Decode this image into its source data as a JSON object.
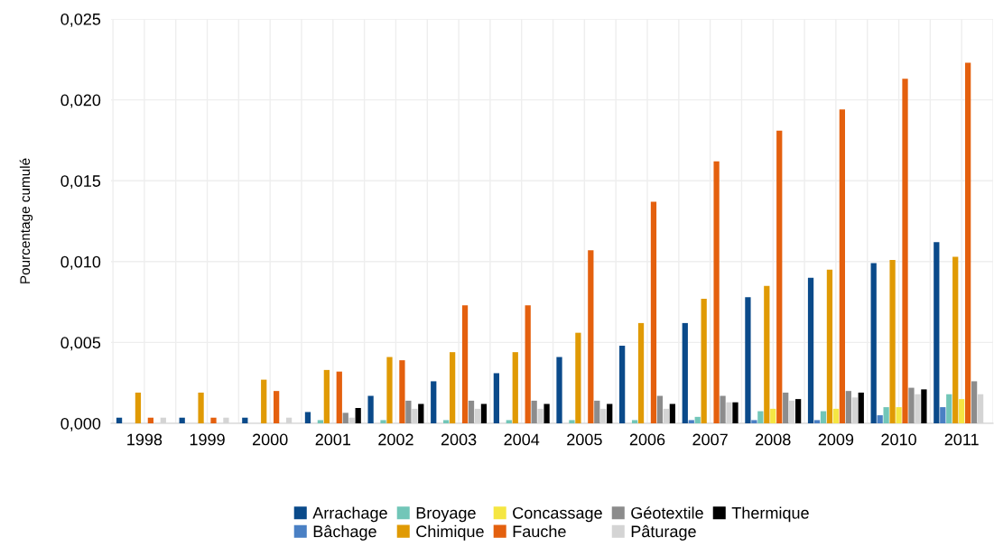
{
  "chart_data": {
    "type": "bar",
    "ylabel": "Pourcentage cumulé",
    "categories": [
      "1998",
      "1999",
      "2000",
      "2001",
      "2002",
      "2003",
      "2004",
      "2005",
      "2006",
      "2007",
      "2008",
      "2009",
      "2010",
      "2011"
    ],
    "series": [
      {
        "name": "Arrachage",
        "color": "#0a4a8a",
        "values": [
          0.00035,
          0.00035,
          0.00035,
          0.0007,
          0.0017,
          0.0026,
          0.0031,
          0.0041,
          0.0048,
          0.0062,
          0.0078,
          0.009,
          0.0099,
          0.0112
        ]
      },
      {
        "name": "Bâchage",
        "color": "#4a80c4",
        "values": [
          0,
          0,
          0,
          0,
          0,
          0,
          0,
          0,
          0,
          0.0002,
          0.0002,
          0.0002,
          0.0005,
          0.001
        ]
      },
      {
        "name": "Broyage",
        "color": "#72c6b8",
        "values": [
          0,
          0,
          0,
          0.0002,
          0.0002,
          0.0002,
          0.0002,
          0.0002,
          0.0002,
          0.0004,
          0.00075,
          0.00075,
          0.001,
          0.0018
        ]
      },
      {
        "name": "Chimique",
        "color": "#e09a04",
        "values": [
          0.0019,
          0.0019,
          0.0027,
          0.0033,
          0.0041,
          0.0044,
          0.0044,
          0.0056,
          0.0062,
          0.0077,
          0.0085,
          0.0095,
          0.0101,
          0.0103
        ]
      },
      {
        "name": "Concassage",
        "color": "#f5e642",
        "values": [
          0,
          0,
          0,
          0,
          0,
          0,
          0,
          0,
          0,
          0,
          0.0009,
          0.0009,
          0.001,
          0.0015
        ]
      },
      {
        "name": "Fauche",
        "color": "#e4600e",
        "values": [
          0.00035,
          0.00035,
          0.002,
          0.0032,
          0.0039,
          0.0073,
          0.0073,
          0.0107,
          0.0137,
          0.0162,
          0.0181,
          0.0194,
          0.0213,
          0.0223
        ]
      },
      {
        "name": "Géotextile",
        "color": "#8c8c8c",
        "values": [
          0,
          0,
          0,
          0.00065,
          0.0014,
          0.0014,
          0.0014,
          0.0014,
          0.0017,
          0.0017,
          0.0019,
          0.002,
          0.0022,
          0.0026
        ]
      },
      {
        "name": "Pâturage",
        "color": "#d4d4d4",
        "values": [
          0.00035,
          0.00035,
          0.00035,
          0.00035,
          0.0009,
          0.0009,
          0.0009,
          0.0009,
          0.0009,
          0.0013,
          0.0014,
          0.0016,
          0.0018,
          0.0018
        ]
      },
      {
        "name": "Thermique",
        "color": "#000000",
        "values": [
          0,
          0,
          0,
          0.00095,
          0.0012,
          0.0012,
          0.0012,
          0.0012,
          0.0012,
          0.0013,
          0.0015,
          0.0019,
          0.0021,
          null
        ]
      }
    ],
    "ylim": [
      0,
      0.025
    ],
    "yticks": [
      {
        "value": 0,
        "label": "0,000"
      },
      {
        "value": 0.005,
        "label": "0,005"
      },
      {
        "value": 0.01,
        "label": "0,010"
      },
      {
        "value": 0.015,
        "label": "0,015"
      },
      {
        "value": 0.02,
        "label": "0,020"
      },
      {
        "value": 0.025,
        "label": "0,025"
      }
    ],
    "grid": true,
    "legend": "bottom"
  }
}
